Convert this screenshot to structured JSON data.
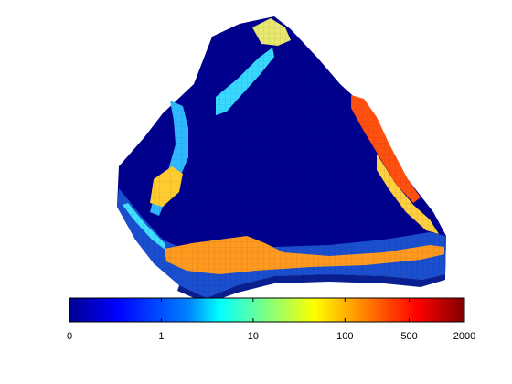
{
  "chart_data": {
    "type": "heatmap",
    "description_kind": "3D reservoir grid model colored by a scalar field (log color scale)",
    "colorbar": {
      "orientation": "horizontal",
      "scale": "log",
      "colormap": "jet",
      "tick_labels": [
        "0",
        "1",
        "10",
        "100",
        "500",
        "2000"
      ],
      "tick_values": [
        0,
        1,
        10,
        100,
        500,
        2000
      ],
      "range": [
        0,
        2000
      ]
    },
    "colormap_stops": [
      "#00008f",
      "#0000ff",
      "#0080ff",
      "#00ffff",
      "#80ff80",
      "#ffff00",
      "#ff8000",
      "#ff0000",
      "#800000"
    ],
    "title": "",
    "xlabel": "",
    "ylabel": ""
  }
}
